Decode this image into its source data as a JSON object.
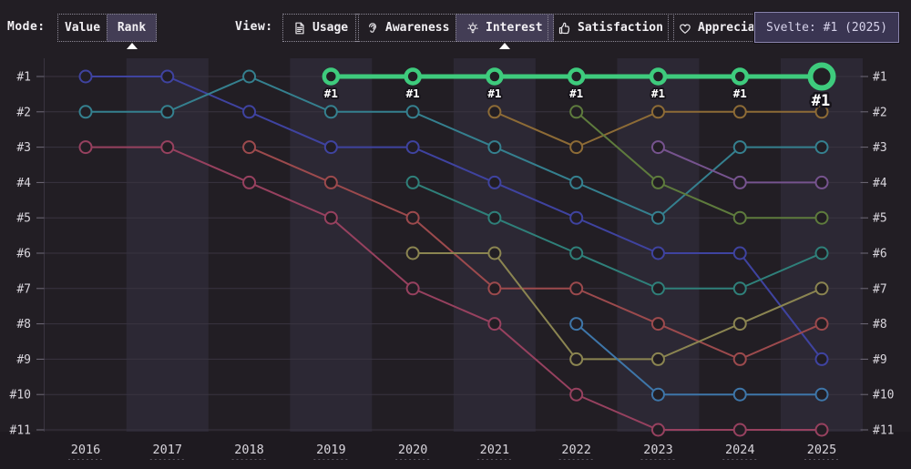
{
  "toolbar": {
    "mode_label": "Mode:",
    "view_label": "View:",
    "mode_buttons": [
      {
        "id": "value",
        "label": "Value",
        "selected": false
      },
      {
        "id": "rank",
        "label": "Rank",
        "selected": true
      }
    ],
    "view_buttons": [
      {
        "id": "usage",
        "label": "Usage",
        "icon": "document-icon",
        "selected": false
      },
      {
        "id": "awareness",
        "label": "Awareness",
        "icon": "ear-icon",
        "selected": false
      },
      {
        "id": "interest",
        "label": "Interest",
        "icon": "lightbulb-icon",
        "selected": true
      },
      {
        "id": "satisfaction",
        "label": "Satisfaction",
        "icon": "thumbs-up-icon",
        "selected": false
      },
      {
        "id": "appreciation",
        "label": "Appreciation",
        "icon": "heart-icon",
        "selected": false
      }
    ]
  },
  "tooltip": {
    "text": "Svelte: #1 (2025)"
  },
  "chart_data": {
    "type": "line",
    "subtype": "bump-chart-of-ranks",
    "x": [
      2016,
      2017,
      2018,
      2019,
      2020,
      2021,
      2022,
      2023,
      2024,
      2025
    ],
    "y_tick_labels": [
      "#1",
      "#2",
      "#3",
      "#4",
      "#5",
      "#6",
      "#7",
      "#8",
      "#9",
      "#10",
      "#11"
    ],
    "ylim": [
      1,
      11
    ],
    "grid": true,
    "legend": "none",
    "highlighted_series": "Svelte",
    "series": [
      {
        "name": "series-indigo",
        "color": "#3f43a0",
        "ranks": [
          1,
          1,
          2,
          3,
          3,
          4,
          5,
          6,
          6,
          9
        ]
      },
      {
        "name": "series-teal",
        "color": "#35808f",
        "ranks": [
          2,
          2,
          1,
          2,
          2,
          3,
          4,
          5,
          3,
          3
        ]
      },
      {
        "name": "series-crimson",
        "color": "#97415f",
        "ranks": [
          3,
          3,
          4,
          5,
          7,
          8,
          10,
          11,
          11,
          11
        ]
      },
      {
        "name": "series-red",
        "color": "#9c4a4d",
        "ranks": [
          null,
          null,
          3,
          4,
          5,
          7,
          7,
          8,
          9,
          8
        ]
      },
      {
        "name": "series-seagreen",
        "color": "#2f807a",
        "ranks": [
          null,
          null,
          null,
          null,
          4,
          5,
          6,
          7,
          7,
          6
        ]
      },
      {
        "name": "series-olive",
        "color": "#8b8551",
        "ranks": [
          null,
          null,
          null,
          null,
          6,
          6,
          9,
          9,
          8,
          7
        ]
      },
      {
        "name": "series-brown",
        "color": "#8d6b36",
        "ranks": [
          null,
          null,
          null,
          null,
          null,
          2,
          3,
          2,
          2,
          2
        ]
      },
      {
        "name": "series-olivegreen",
        "color": "#5e7b3d",
        "ranks": [
          null,
          null,
          null,
          null,
          null,
          null,
          2,
          4,
          5,
          5
        ]
      },
      {
        "name": "series-azure",
        "color": "#3e76a9",
        "ranks": [
          null,
          null,
          null,
          null,
          null,
          null,
          8,
          10,
          10,
          10
        ]
      },
      {
        "name": "series-purple",
        "color": "#76538e",
        "ranks": [
          null,
          null,
          null,
          null,
          null,
          null,
          null,
          3,
          4,
          4
        ]
      },
      {
        "name": "Svelte",
        "highlight": true,
        "color": "#3ecb7d",
        "ranks": [
          null,
          null,
          null,
          1,
          1,
          1,
          1,
          1,
          1,
          1
        ],
        "point_labels": [
          "",
          "",
          "",
          "#1",
          "#1",
          "#1",
          "#1",
          "#1",
          "#1",
          "#1"
        ]
      }
    ]
  },
  "theme": {
    "page_bg": "#221e24",
    "band": "#2c2834",
    "axis_strip": "#1e1a20",
    "gridline": "#393440",
    "tick": "#6f6a78",
    "axis_text": "#d8d5dc",
    "underline": "#57525e",
    "highlight": "#3ecb7d",
    "label_text": "#ffffff",
    "label_outline": "#16131a"
  }
}
